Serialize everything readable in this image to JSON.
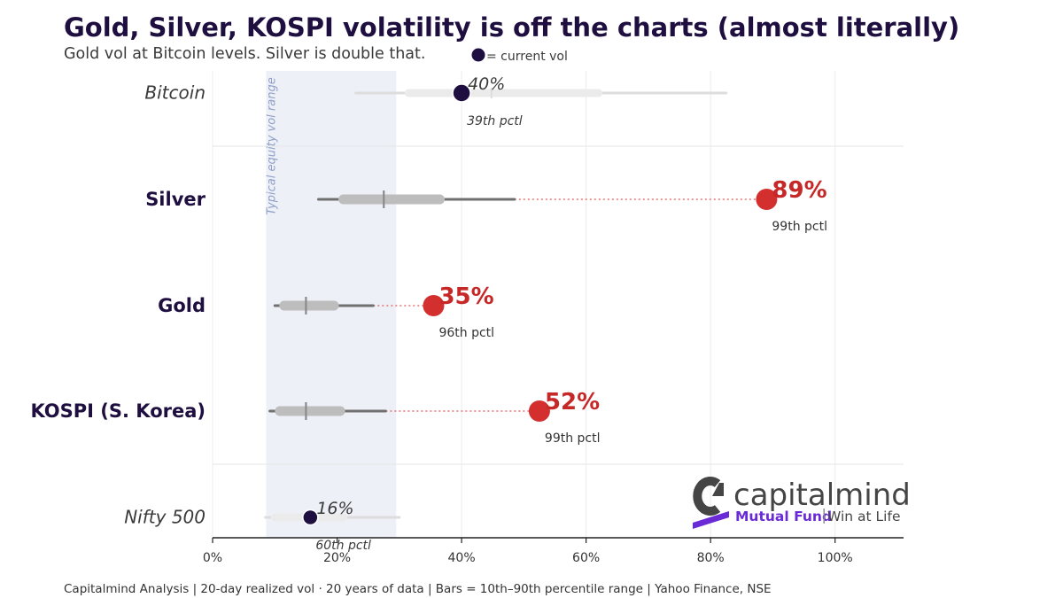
{
  "title": "Gold, Silver, KOSPI volatility is off the charts (almost literally)",
  "subtitle": "Gold vol at Bitcoin levels. Silver is double that.",
  "legend_label": "= current vol",
  "band_label": "Typical equity vol range",
  "footer": "Capitalmind Analysis  |  20-day realized vol · 20 years of data  |  Bars = 10th–90th percentile range  |  Yahoo Finance, NSE",
  "brand": {
    "name": "capitalmind",
    "product": "Mutual Fund",
    "tagline": "Win at Life",
    "dark_color": "#454545",
    "accent_color": "#6a2ad6"
  },
  "colors": {
    "title": "#1e0f40",
    "current_dot": "#1e0f40",
    "alert": "#d32f2f",
    "alert_text": "#c62828",
    "whisker": "#707070",
    "iqr_bar": "#bdbdbd",
    "band": "#eef0f7",
    "band_text": "#8fa0c8"
  },
  "chart_data": {
    "type": "range-dot",
    "title": "Gold, Silver, KOSPI volatility is off the charts (almost literally)",
    "xlabel": "",
    "ylabel": "",
    "xlim": [
      0,
      1.11
    ],
    "xticks": [
      0,
      0.2,
      0.4,
      0.6,
      0.8,
      1.0
    ],
    "xtick_labels": [
      "0%",
      "20%",
      "40%",
      "60%",
      "80%",
      "100%"
    ],
    "typical_equity_range": [
      0.086,
      0.295
    ],
    "series": [
      {
        "name": "Bitcoin",
        "style": "context",
        "p10": 0.23,
        "p25": 0.315,
        "median": 0.448,
        "p75": 0.62,
        "p90": 0.825,
        "current": 0.4,
        "current_label": "40%",
        "percentile_label": "39th pctl"
      },
      {
        "name": "Silver",
        "style": "highlight",
        "p10": 0.17,
        "p25": 0.21,
        "median": 0.275,
        "p75": 0.365,
        "p90": 0.485,
        "current": 0.89,
        "current_label": "89%",
        "percentile_label": "99th pctl"
      },
      {
        "name": "Gold",
        "style": "highlight",
        "p10": 0.1,
        "p25": 0.115,
        "median": 0.15,
        "p75": 0.195,
        "p90": 0.258,
        "current": 0.355,
        "current_label": "35%",
        "percentile_label": "96th pctl"
      },
      {
        "name": "KOSPI (S. Korea)",
        "style": "highlight",
        "p10": 0.092,
        "p25": 0.108,
        "median": 0.15,
        "p75": 0.205,
        "p90": 0.278,
        "current": 0.525,
        "current_label": "52%",
        "percentile_label": "99th pctl"
      },
      {
        "name": "Nifty 500",
        "style": "context",
        "p10": 0.085,
        "p25": 0.1,
        "median": 0.155,
        "p75": 0.21,
        "p90": 0.3,
        "current": 0.157,
        "current_label": "16%",
        "percentile_label": "60th pctl"
      }
    ]
  }
}
